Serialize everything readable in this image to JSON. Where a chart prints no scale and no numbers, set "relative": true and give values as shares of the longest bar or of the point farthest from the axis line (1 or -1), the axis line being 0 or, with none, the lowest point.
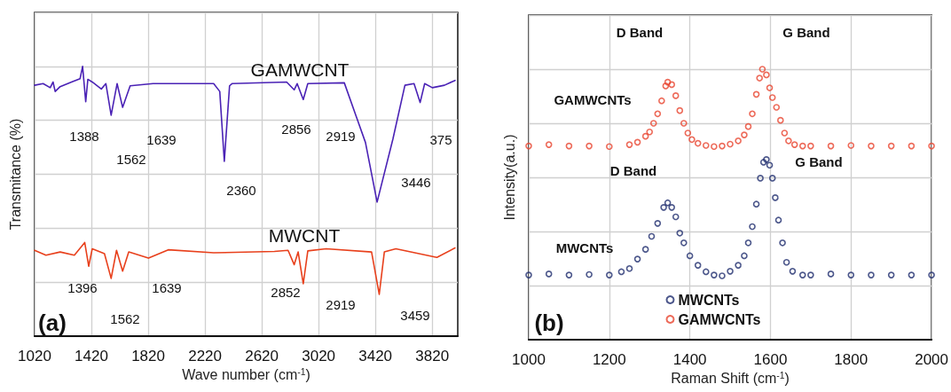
{
  "chart_data": [
    {
      "type": "line",
      "xlabel": "Wave number (cm$^{-1}$)",
      "ylabel": "Transmitance (%)",
      "relative": true,
      "xlim": [
        1020,
        4000
      ],
      "xticks": [
        1020,
        1420,
        1820,
        2220,
        2620,
        3020,
        3420,
        3820
      ],
      "grid": true,
      "legend": false,
      "marker": "none",
      "line_style": "solid",
      "series": [
        {
          "color": "#4a22b5",
          "x": [
            1020,
            1080,
            1130,
            1150,
            1165,
            1200,
            1280,
            1340,
            1358,
            1380,
            1395,
            1426,
            1490,
            1522,
            1559,
            1601,
            1640,
            1693,
            1854,
            2281,
            2324,
            2356,
            2393,
            2410,
            2795,
            2848,
            2869,
            2912,
            2944,
            3201,
            3286,
            3350,
            3432,
            3543,
            3628,
            3692,
            3735,
            3767,
            3821,
            3906,
            3981
          ],
          "values": [
            0.93,
            0.936,
            0.921,
            0.942,
            0.907,
            0.925,
            0.942,
            0.954,
            1.0,
            0.869,
            0.952,
            0.942,
            0.916,
            0.936,
            0.819,
            0.936,
            0.848,
            0.928,
            0.936,
            0.936,
            0.907,
            0.648,
            0.928,
            0.936,
            0.942,
            0.913,
            0.936,
            0.877,
            0.936,
            0.939,
            0.813,
            0.718,
            0.497,
            0.73,
            0.93,
            0.936,
            0.866,
            0.936,
            0.921,
            0.93,
            0.948
          ]
        },
        {
          "color": "#e8401c",
          "x": [
            1020,
            1100,
            1200,
            1300,
            1373,
            1401,
            1426,
            1512,
            1559,
            1597,
            1640,
            1683,
            1822,
            1961,
            2281,
            2709,
            2805,
            2848,
            2876,
            2912,
            2944,
            3073,
            3393,
            3447,
            3483,
            3564,
            3853,
            3981
          ],
          "values": [
            0.318,
            0.3,
            0.312,
            0.3,
            0.347,
            0.259,
            0.324,
            0.306,
            0.214,
            0.318,
            0.241,
            0.312,
            0.289,
            0.32,
            0.309,
            0.314,
            0.318,
            0.265,
            0.312,
            0.194,
            0.316,
            0.324,
            0.312,
            0.155,
            0.312,
            0.324,
            0.292,
            0.327
          ]
        }
      ],
      "annotations": [
        "GAMWCNT",
        "MWCNT",
        "1388",
        "1562",
        "1639",
        "2360",
        "2856",
        "2919",
        "375",
        "3446",
        "1396",
        "1562",
        "1639",
        "2852",
        "2919",
        "3459",
        "(a)"
      ]
    },
    {
      "type": "scatter",
      "xlabel": "Raman Shift (cm$^{-1}$)",
      "ylabel": "Intensity(a.u.)",
      "relative": true,
      "xlim": [
        1000,
        2000
      ],
      "xticks": [
        1000,
        1200,
        1400,
        1600,
        1800,
        2000
      ],
      "grid": true,
      "legend": "bottom",
      "marker": "circle",
      "series": [
        {
          "name": "MWCNTs",
          "color": "#1f2d6e",
          "x": [
            1000,
            1050,
            1100,
            1150,
            1200,
            1230,
            1250,
            1270,
            1290,
            1305,
            1320,
            1335,
            1345,
            1355,
            1365,
            1375,
            1385,
            1400,
            1420,
            1440,
            1460,
            1480,
            1500,
            1520,
            1535,
            1545,
            1555,
            1565,
            1575,
            1583,
            1590,
            1598,
            1605,
            1612,
            1620,
            1630,
            1640,
            1655,
            1680,
            1700,
            1750,
            1800,
            1850,
            1900,
            1950,
            2000
          ],
          "values": [
            0.239,
            0.243,
            0.239,
            0.241,
            0.239,
            0.251,
            0.263,
            0.298,
            0.334,
            0.382,
            0.43,
            0.489,
            0.506,
            0.489,
            0.454,
            0.394,
            0.358,
            0.31,
            0.275,
            0.251,
            0.239,
            0.236,
            0.253,
            0.275,
            0.31,
            0.358,
            0.418,
            0.501,
            0.597,
            0.656,
            0.666,
            0.645,
            0.597,
            0.525,
            0.442,
            0.358,
            0.286,
            0.253,
            0.239,
            0.239,
            0.243,
            0.239,
            0.239,
            0.239,
            0.239,
            0.239
          ]
        },
        {
          "name": "GAMWCNTs",
          "color": "#e84530",
          "x": [
            1000,
            1050,
            1100,
            1150,
            1200,
            1250,
            1270,
            1290,
            1300,
            1310,
            1320,
            1330,
            1340,
            1345,
            1355,
            1365,
            1375,
            1385,
            1395,
            1405,
            1420,
            1440,
            1460,
            1480,
            1500,
            1520,
            1535,
            1545,
            1555,
            1565,
            1573,
            1580,
            1590,
            1598,
            1605,
            1615,
            1625,
            1635,
            1645,
            1660,
            1680,
            1700,
            1750,
            1800,
            1850,
            1900,
            1950,
            2000
          ],
          "values": [
            0.716,
            0.721,
            0.716,
            0.716,
            0.714,
            0.721,
            0.73,
            0.752,
            0.768,
            0.8,
            0.835,
            0.883,
            0.938,
            0.952,
            0.943,
            0.902,
            0.847,
            0.8,
            0.764,
            0.74,
            0.726,
            0.718,
            0.714,
            0.716,
            0.723,
            0.735,
            0.757,
            0.788,
            0.835,
            0.907,
            0.967,
            1.0,
            0.979,
            0.931,
            0.895,
            0.859,
            0.811,
            0.764,
            0.735,
            0.721,
            0.716,
            0.716,
            0.716,
            0.718,
            0.716,
            0.716,
            0.716,
            0.716
          ]
        }
      ],
      "annotations": [
        "D Band",
        "G Band",
        "GAMWCNTs",
        "D Band",
        "G Band",
        "MWCNTs",
        "(b)"
      ]
    }
  ]
}
